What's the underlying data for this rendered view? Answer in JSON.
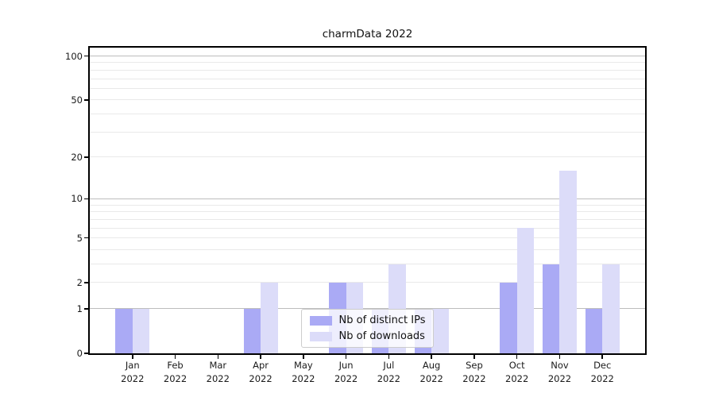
{
  "figure": {
    "title": "charmData 2022"
  },
  "chart_data": {
    "type": "bar",
    "title": "charmData 2022",
    "categories": [
      "Jan 2022",
      "Feb 2022",
      "Mar 2022",
      "Apr 2022",
      "May 2022",
      "Jun 2022",
      "Jul 2022",
      "Aug 2022",
      "Sep 2022",
      "Oct 2022",
      "Nov 2022",
      "Dec 2022"
    ],
    "series": [
      {
        "name": "Nb of distinct IPs",
        "color": "#aaaaf5",
        "values": [
          1,
          0,
          0,
          1,
          0,
          2,
          1,
          1,
          0,
          2,
          3,
          1
        ]
      },
      {
        "name": "Nb of downloads",
        "color": "#dcdcf9",
        "values": [
          1,
          0,
          0,
          2,
          0,
          2,
          3,
          1,
          0,
          6,
          16,
          3
        ]
      }
    ],
    "xlabel": "",
    "ylabel": "",
    "yscale": "log1p",
    "yticks": [
      0,
      1,
      2,
      5,
      10,
      20,
      50,
      100
    ],
    "ylim": [
      0,
      114
    ],
    "gridlines_major": [
      1,
      10,
      100
    ],
    "gridlines_minor": [
      2,
      3,
      4,
      5,
      6,
      7,
      8,
      9,
      20,
      30,
      40,
      50,
      60,
      70,
      80,
      90
    ],
    "grid": true,
    "legend_position": "lower center"
  },
  "colors": {
    "background": "#ffffff",
    "spine": "#000000",
    "grid_major": "#bdbdbd",
    "grid_minor": "#e9e9e9",
    "text": "#1a1a1a",
    "legend_border": "#cccccc"
  }
}
